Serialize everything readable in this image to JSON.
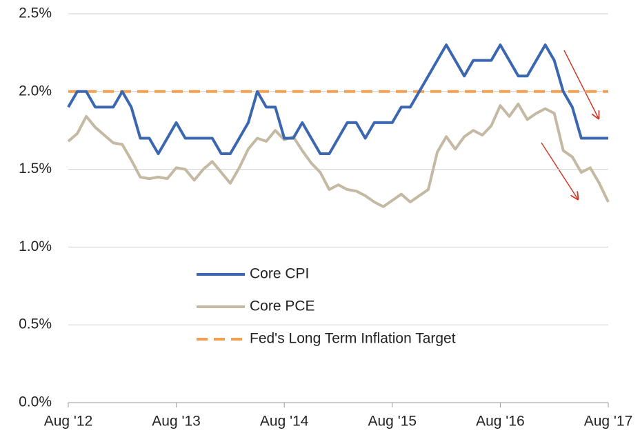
{
  "chart_data": {
    "type": "line",
    "categories": [
      "Aug '12",
      null,
      null,
      null,
      null,
      null,
      null,
      null,
      null,
      null,
      null,
      null,
      "Aug '13",
      null,
      null,
      null,
      null,
      null,
      null,
      null,
      null,
      null,
      null,
      null,
      "Aug '14",
      null,
      null,
      null,
      null,
      null,
      null,
      null,
      null,
      null,
      null,
      null,
      "Aug '15",
      null,
      null,
      null,
      null,
      null,
      null,
      null,
      null,
      null,
      null,
      null,
      "Aug '16",
      null,
      null,
      null,
      null,
      null,
      null,
      null,
      null,
      null,
      null,
      null,
      "Aug '17"
    ],
    "series": [
      {
        "name": "Core CPI",
        "color": "#3a67b0",
        "values": [
          1.9,
          2.0,
          2.0,
          1.9,
          1.9,
          1.9,
          2.0,
          1.9,
          1.7,
          1.7,
          1.6,
          1.7,
          1.8,
          1.7,
          1.7,
          1.7,
          1.7,
          1.6,
          1.6,
          1.7,
          1.8,
          2.0,
          1.9,
          1.9,
          1.7,
          1.7,
          1.8,
          1.7,
          1.6,
          1.6,
          1.7,
          1.8,
          1.8,
          1.7,
          1.8,
          1.8,
          1.8,
          1.9,
          1.9,
          2.0,
          2.1,
          2.2,
          2.3,
          2.2,
          2.1,
          2.2,
          2.2,
          2.2,
          2.3,
          2.2,
          2.1,
          2.1,
          2.2,
          2.3,
          2.2,
          2.0,
          1.9,
          1.7,
          1.7,
          1.7,
          1.7
        ]
      },
      {
        "name": "Core PCE",
        "color": "#c4b9a3",
        "values": [
          1.68,
          1.73,
          1.84,
          1.77,
          1.72,
          1.67,
          1.66,
          1.56,
          1.45,
          1.44,
          1.45,
          1.44,
          1.51,
          1.5,
          1.43,
          1.5,
          1.55,
          1.48,
          1.41,
          1.51,
          1.63,
          1.7,
          1.68,
          1.75,
          1.69,
          1.71,
          1.62,
          1.54,
          1.48,
          1.37,
          1.4,
          1.37,
          1.36,
          1.33,
          1.29,
          1.26,
          1.3,
          1.34,
          1.29,
          1.33,
          1.37,
          1.61,
          1.71,
          1.63,
          1.71,
          1.75,
          1.72,
          1.78,
          1.91,
          1.84,
          1.92,
          1.82,
          1.86,
          1.89,
          1.86,
          1.62,
          1.58,
          1.48,
          1.51,
          1.41,
          1.29
        ]
      },
      {
        "name": "Fed's Long Term Inflation Target",
        "color": "#f0a050",
        "dash": true,
        "values": [
          2.0,
          2.0,
          2.0,
          2.0,
          2.0,
          2.0,
          2.0,
          2.0,
          2.0,
          2.0,
          2.0,
          2.0,
          2.0,
          2.0,
          2.0,
          2.0,
          2.0,
          2.0,
          2.0,
          2.0,
          2.0,
          2.0,
          2.0,
          2.0,
          2.0,
          2.0,
          2.0,
          2.0,
          2.0,
          2.0,
          2.0,
          2.0,
          2.0,
          2.0,
          2.0,
          2.0,
          2.0,
          2.0,
          2.0,
          2.0,
          2.0,
          2.0,
          2.0,
          2.0,
          2.0,
          2.0,
          2.0,
          2.0,
          2.0,
          2.0,
          2.0,
          2.0,
          2.0,
          2.0,
          2.0,
          2.0,
          2.0,
          2.0,
          2.0,
          2.0,
          2.0
        ]
      }
    ],
    "ylim": [
      0,
      2.5
    ],
    "yticks": [
      {
        "value": 0,
        "label": "0.0%"
      },
      {
        "value": 0.5,
        "label": "0.5%"
      },
      {
        "value": 1.0,
        "label": "1.0%"
      },
      {
        "value": 1.5,
        "label": "1.5%"
      },
      {
        "value": 2.0,
        "label": "2.0%"
      },
      {
        "value": 2.5,
        "label": "2.5%"
      }
    ],
    "grid": true,
    "legend": "inside"
  }
}
